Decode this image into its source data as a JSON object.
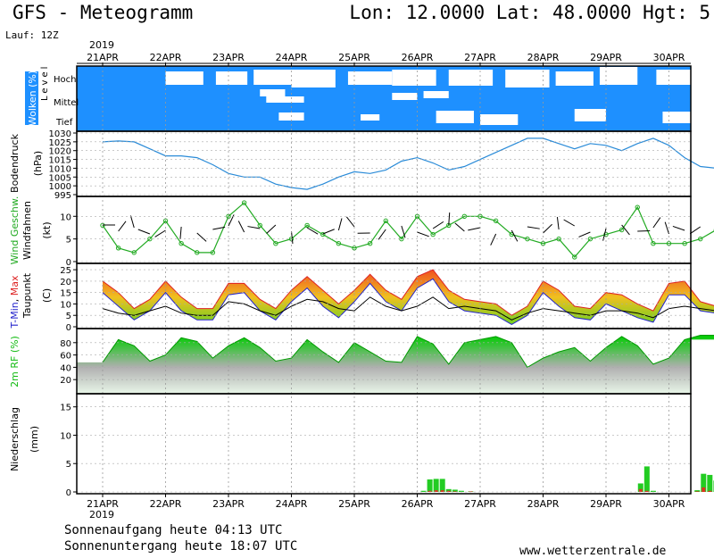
{
  "header": {
    "title": "GFS - Meteogramm",
    "coords": "Lon: 12.0000 Lat: 48.0000 Hgt: 5",
    "run": "Lauf: 12Z",
    "year_top": "2019",
    "year_bottom": "2019"
  },
  "footer": {
    "sunrise": "Sonnenaufgang heute 04:13 UTC",
    "sunset": "Sonnenuntergang heute 18:07 UTC",
    "source": "www.wetterzentrale.de"
  },
  "colors": {
    "cloud_bg": "#1e90ff",
    "pressure": "#2a8bd8",
    "wind_speed": "#22aa22",
    "tmin": "#2222cc",
    "tmax": "#dd2222",
    "dewpoint": "#000000",
    "rh": "#11bb11",
    "precip_rain": "#22cc22",
    "precip_conv": "#dd3322"
  },
  "chart_data": [
    {
      "type": "heatmap",
      "panel": "clouds",
      "ylabel": "Wolken (%)",
      "side_label": "Level",
      "levels": [
        "Hoch",
        "Mittel",
        "Tief"
      ],
      "days": [
        "21APR",
        "22APR",
        "23APR",
        "24APR",
        "25APR",
        "26APR",
        "27APR",
        "28APR",
        "29APR",
        "30APR"
      ],
      "grid": true
    },
    {
      "type": "line",
      "panel": "pressure",
      "ylabel": "Bodendruck",
      "yunit": "(hPa)",
      "ylim": [
        995,
        1030
      ],
      "yticks": [
        995,
        1000,
        1005,
        1010,
        1015,
        1020,
        1025,
        1030
      ],
      "x": [
        0,
        0.25,
        0.5,
        0.75,
        1,
        1.25,
        1.5,
        1.75,
        2,
        2.25,
        2.5,
        2.75,
        3,
        3.25,
        3.5,
        3.75,
        4,
        4.25,
        4.5,
        4.75,
        5,
        5.25,
        5.5,
        5.75,
        6,
        6.25,
        6.5,
        6.75,
        7,
        7.25,
        7.5,
        7.75,
        8,
        8.25,
        8.5,
        8.75,
        9,
        9.25,
        9.5,
        9.75,
        10
      ],
      "series": [
        {
          "values": [
            1025,
            1025.5,
            1025,
            1021,
            1017,
            1017,
            1016,
            1012,
            1007,
            1005,
            1005,
            1001,
            999,
            998,
            1001,
            1005,
            1008,
            1007,
            1009,
            1014,
            1016,
            1013,
            1009,
            1011,
            1015,
            1019,
            1023,
            1027,
            1027,
            1024,
            1021,
            1024,
            1023,
            1020,
            1024,
            1027,
            1023,
            1016,
            1011,
            1010,
            1009
          ]
        }
      ]
    },
    {
      "type": "line",
      "panel": "wind",
      "ylabel": "Wind Geschw.",
      "ylabel2": "Windfahnen",
      "yunit": "(kt)",
      "ylim": [
        0,
        14
      ],
      "yticks": [
        0,
        5,
        10
      ],
      "x": [
        0,
        0.25,
        0.5,
        0.75,
        1,
        1.25,
        1.5,
        1.75,
        2,
        2.25,
        2.5,
        2.75,
        3,
        3.25,
        3.5,
        3.75,
        4,
        4.25,
        4.5,
        4.75,
        5,
        5.25,
        5.5,
        5.75,
        6,
        6.25,
        6.5,
        6.75,
        7,
        7.25,
        7.5,
        7.75,
        8,
        8.25,
        8.5,
        8.75,
        9,
        9.25,
        9.5,
        9.75,
        10
      ],
      "series": [
        {
          "values": [
            8,
            3,
            2,
            5,
            9,
            4,
            2,
            2,
            10,
            13,
            8,
            4,
            5,
            8,
            6,
            4,
            3,
            4,
            9,
            5,
            10,
            6,
            8,
            10,
            10,
            9,
            6,
            5,
            4,
            5,
            1,
            5,
            6,
            7,
            12,
            4,
            4,
            4,
            5,
            7,
            7
          ]
        }
      ]
    },
    {
      "type": "area",
      "panel": "temperature",
      "ylabel_parts": [
        "T-Min",
        "Max"
      ],
      "ylabel2": "Taupunkt",
      "yunit": "(C)",
      "ylim": [
        0,
        27
      ],
      "yticks": [
        0,
        5,
        10,
        15,
        20,
        25
      ],
      "x": [
        0,
        0.25,
        0.5,
        0.75,
        1,
        1.25,
        1.5,
        1.75,
        2,
        2.25,
        2.5,
        2.75,
        3,
        3.25,
        3.5,
        3.75,
        4,
        4.25,
        4.5,
        4.75,
        5,
        5.25,
        5.5,
        5.75,
        6,
        6.25,
        6.5,
        6.75,
        7,
        7.25,
        7.5,
        7.75,
        8,
        8.25,
        8.5,
        8.75,
        9,
        9.25,
        9.5,
        9.75,
        10
      ],
      "series": [
        {
          "name": "T-Min",
          "values": [
            18,
            12,
            6,
            10,
            18,
            10,
            6,
            6,
            17,
            18,
            10,
            6,
            14,
            20,
            12,
            7,
            14,
            22,
            14,
            10,
            20,
            24,
            14,
            10,
            9,
            8,
            4,
            8,
            18,
            12,
            7,
            6,
            13,
            10,
            7,
            5,
            17,
            17,
            10,
            9,
            9
          ]
        },
        {
          "name": "Max",
          "values": [
            20,
            15,
            8,
            12,
            20,
            13,
            8,
            8,
            19,
            19,
            12,
            8,
            16,
            22,
            16,
            10,
            16,
            23,
            16,
            12,
            22,
            25,
            16,
            12,
            11,
            10,
            5,
            9,
            20,
            16,
            9,
            8,
            15,
            14,
            10,
            7,
            19,
            20,
            11,
            9,
            10
          ]
        },
        {
          "name": "Taupunkt",
          "values": [
            8,
            6,
            5,
            7,
            9,
            6,
            5,
            5,
            11,
            10,
            7,
            5,
            9,
            12,
            11,
            8,
            7,
            13,
            9,
            7,
            9,
            13,
            8,
            9,
            8,
            7,
            3,
            6,
            8,
            7,
            6,
            5,
            7,
            7,
            6,
            4,
            8,
            9,
            8,
            7,
            9
          ]
        }
      ]
    },
    {
      "type": "area",
      "panel": "humidity",
      "ylabel": "2m RF (%)",
      "ylim": [
        0,
        100
      ],
      "yticks": [
        20,
        40,
        60,
        80
      ],
      "x": [
        0,
        0.25,
        0.5,
        0.75,
        1,
        1.25,
        1.5,
        1.75,
        2,
        2.25,
        2.5,
        2.75,
        3,
        3.25,
        3.5,
        3.75,
        4,
        4.25,
        4.5,
        4.75,
        5,
        5.25,
        5.5,
        5.75,
        6,
        6.25,
        6.5,
        6.75,
        7,
        7.25,
        7.5,
        7.75,
        8,
        8.25,
        8.5,
        8.75,
        9,
        9.25,
        9.5,
        9.75,
        10
      ],
      "series": [
        {
          "values": [
            48,
            85,
            75,
            50,
            60,
            88,
            82,
            55,
            75,
            88,
            72,
            50,
            55,
            85,
            65,
            48,
            80,
            65,
            50,
            48,
            90,
            78,
            45,
            80,
            85,
            90,
            80,
            40,
            55,
            65,
            72,
            50,
            72,
            90,
            75,
            45,
            55,
            85,
            92,
            92,
            85
          ]
        }
      ]
    },
    {
      "type": "bar",
      "panel": "precipitation",
      "ylabel": "Niederschlag",
      "yunit": "(mm)",
      "ylim": [
        0,
        17
      ],
      "yticks": [
        0,
        5,
        10,
        15
      ],
      "x": [
        5.1,
        5.2,
        5.3,
        5.4,
        5.5,
        5.6,
        5.7,
        5.85,
        8.55,
        8.65,
        8.75,
        9.45,
        9.55,
        9.65,
        9.75,
        9.85
      ],
      "series": [
        {
          "name": "rain",
          "values": [
            0.2,
            2.2,
            2.3,
            2.3,
            0.5,
            0.4,
            0.2,
            0.1,
            1.5,
            4.5,
            0.2,
            0.3,
            3.2,
            3.0,
            2.0,
            0.2
          ]
        },
        {
          "name": "conv",
          "values": [
            0,
            0.2,
            0.3,
            0.3,
            0.2,
            0.1,
            0,
            0.1,
            0.5,
            0.2,
            0,
            0.1,
            0.8,
            0.2,
            0,
            0
          ]
        }
      ]
    }
  ]
}
